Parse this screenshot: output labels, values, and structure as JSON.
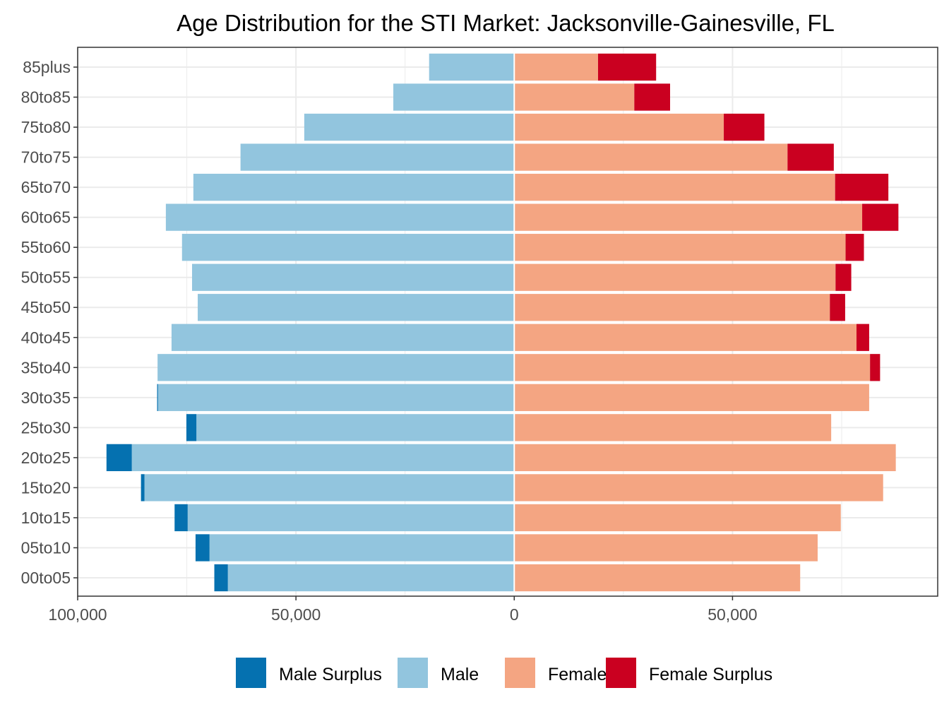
{
  "chart_data": {
    "type": "bar",
    "orientation": "horizontal",
    "title": "Age Distribution for the STI Market: Jacksonville-Gainesville, FL",
    "xlabel": "",
    "ylabel": "",
    "xlim": [
      -100000,
      97000
    ],
    "x_ticks": [
      -100000,
      -50000,
      0,
      50000
    ],
    "x_tick_labels": [
      "100,000",
      "50,000",
      "0",
      "50,000"
    ],
    "categories": [
      "85plus",
      "80to85",
      "75to80",
      "70to75",
      "65to70",
      "60to65",
      "55to60",
      "50to55",
      "45to50",
      "40to45",
      "35to40",
      "30to35",
      "25to30",
      "20to25",
      "15to20",
      "10to15",
      "05to10",
      "00to05"
    ],
    "series": [
      {
        "name": "Male Surplus",
        "color": "#0571b0",
        "values": [
          0,
          0,
          0,
          0,
          0,
          0,
          0,
          0,
          0,
          0,
          0,
          200,
          2300,
          5800,
          800,
          3000,
          3200,
          3100
        ]
      },
      {
        "name": "Male",
        "color": "#92c5de",
        "values": [
          19500,
          27700,
          48100,
          62700,
          73500,
          79800,
          76100,
          73800,
          72500,
          78500,
          81700,
          81600,
          72800,
          87600,
          84700,
          74800,
          69800,
          65600
        ]
      },
      {
        "name": "Female",
        "color": "#f4a582",
        "values": [
          19200,
          27500,
          48000,
          62600,
          73500,
          79700,
          75900,
          73600,
          72300,
          78400,
          81500,
          81300,
          72600,
          87400,
          84500,
          74800,
          69500,
          65500
        ]
      },
      {
        "name": "Female Surplus",
        "color": "#ca0020",
        "values": [
          13300,
          8200,
          9300,
          10600,
          12200,
          8300,
          4200,
          3600,
          3500,
          2900,
          2300,
          0,
          0,
          0,
          0,
          0,
          0,
          0
        ]
      }
    ],
    "grid": true,
    "legend_position": "bottom"
  }
}
